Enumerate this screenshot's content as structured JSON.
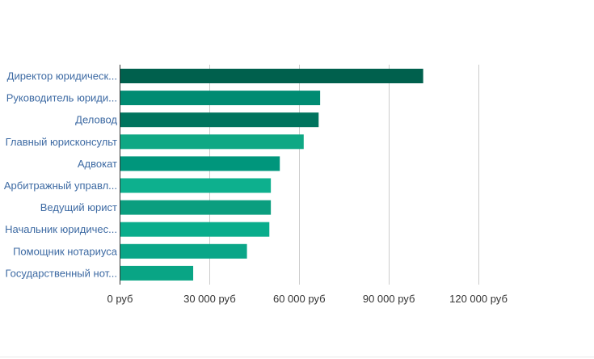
{
  "chart_data": {
    "type": "bar",
    "orientation": "horizontal",
    "categories": [
      "Директор юридическ...",
      "Руководитель юриди...",
      "Деловод",
      "Главный юрисконсульт",
      "Адвокат",
      "Арбитражный управл...",
      "Ведущий юрист",
      "Начальник юридичес...",
      "Помощник нотариуса",
      "Государственный нот..."
    ],
    "values": [
      101500,
      67000,
      66500,
      61500,
      53500,
      50500,
      50500,
      50000,
      42500,
      24500
    ],
    "colors": [
      "#00604d",
      "#008b72",
      "#00745e",
      "#0fa884",
      "#00967c",
      "#0db08e",
      "#0b9e7f",
      "#09ad8c",
      "#0aa688",
      "#09a585"
    ],
    "xlim": [
      0,
      135000
    ],
    "x_ticks": [
      0,
      30000,
      60000,
      90000,
      120000
    ],
    "x_tick_labels": [
      "0 руб",
      "30 000 руб",
      "60 000 руб",
      "90 000 руб",
      "120 000 руб"
    ],
    "grid": true,
    "legend": "none",
    "title": "",
    "xlabel": "",
    "ylabel": ""
  }
}
